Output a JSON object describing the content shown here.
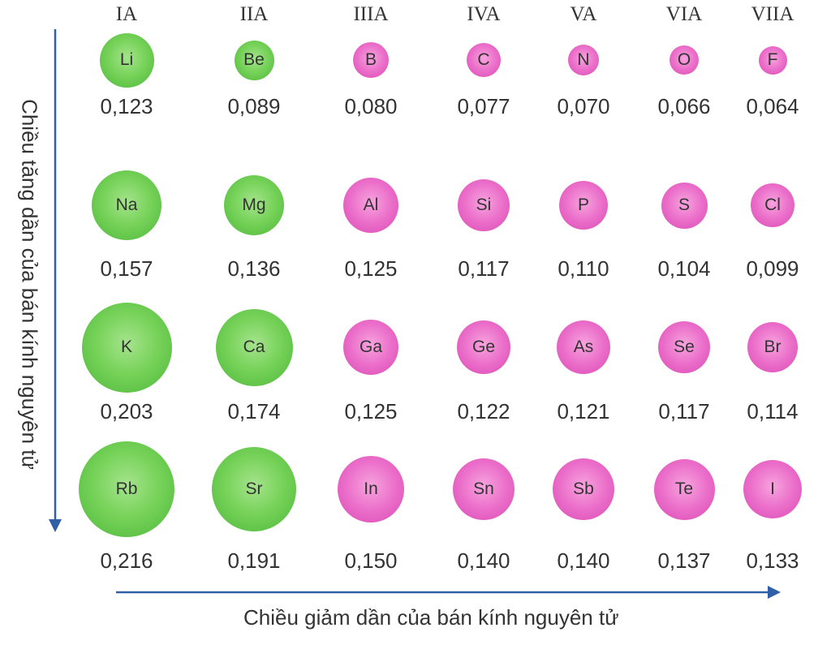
{
  "groups": [
    "IA",
    "IIA",
    "IIIA",
    "IVA",
    "VA",
    "VIA",
    "VIIA"
  ],
  "periods": [
    {
      "elements": [
        {
          "symbol": "Li",
          "radius": "0,123",
          "type": "metal"
        },
        {
          "symbol": "Be",
          "radius": "0,089",
          "type": "metal"
        },
        {
          "symbol": "B",
          "radius": "0,080",
          "type": "nonmetal"
        },
        {
          "symbol": "C",
          "radius": "0,077",
          "type": "nonmetal"
        },
        {
          "symbol": "N",
          "radius": "0,070",
          "type": "nonmetal"
        },
        {
          "symbol": "O",
          "radius": "0,066",
          "type": "nonmetal"
        },
        {
          "symbol": "F",
          "radius": "0,064",
          "type": "nonmetal"
        }
      ]
    },
    {
      "elements": [
        {
          "symbol": "Na",
          "radius": "0,157",
          "type": "metal"
        },
        {
          "symbol": "Mg",
          "radius": "0,136",
          "type": "metal"
        },
        {
          "symbol": "Al",
          "radius": "0,125",
          "type": "nonmetal"
        },
        {
          "symbol": "Si",
          "radius": "0,117",
          "type": "nonmetal"
        },
        {
          "symbol": "P",
          "radius": "0,110",
          "type": "nonmetal"
        },
        {
          "symbol": "S",
          "radius": "0,104",
          "type": "nonmetal"
        },
        {
          "symbol": "Cl",
          "radius": "0,099",
          "type": "nonmetal"
        }
      ]
    },
    {
      "elements": [
        {
          "symbol": "K",
          "radius": "0,203",
          "type": "metal"
        },
        {
          "symbol": "Ca",
          "radius": "0,174",
          "type": "metal"
        },
        {
          "symbol": "Ga",
          "radius": "0,125",
          "type": "nonmetal"
        },
        {
          "symbol": "Ge",
          "radius": "0,122",
          "type": "nonmetal"
        },
        {
          "symbol": "As",
          "radius": "0,121",
          "type": "nonmetal"
        },
        {
          "symbol": "Se",
          "radius": "0,117",
          "type": "nonmetal"
        },
        {
          "symbol": "Br",
          "radius": "0,114",
          "type": "nonmetal"
        }
      ]
    },
    {
      "elements": [
        {
          "symbol": "Rb",
          "radius": "0,216",
          "type": "metal"
        },
        {
          "symbol": "Sr",
          "radius": "0,191",
          "type": "metal"
        },
        {
          "symbol": "In",
          "radius": "0,150",
          "type": "nonmetal"
        },
        {
          "symbol": "Sn",
          "radius": "0,140",
          "type": "nonmetal"
        },
        {
          "symbol": "Sb",
          "radius": "0,140",
          "type": "nonmetal"
        },
        {
          "symbol": "Te",
          "radius": "0,137",
          "type": "nonmetal"
        },
        {
          "symbol": "I",
          "radius": "0,133",
          "type": "nonmetal"
        }
      ]
    }
  ],
  "vertical_axis_label": "Chiều tăng dần của bán kính nguyên tử",
  "horizontal_axis_label": "Chiều giảm dần của bán kính nguyên tử",
  "colors": {
    "metal": "#6cc84f",
    "nonmetal": "#e866c4",
    "arrow": "#2f5fa6",
    "text": "#333333"
  }
}
